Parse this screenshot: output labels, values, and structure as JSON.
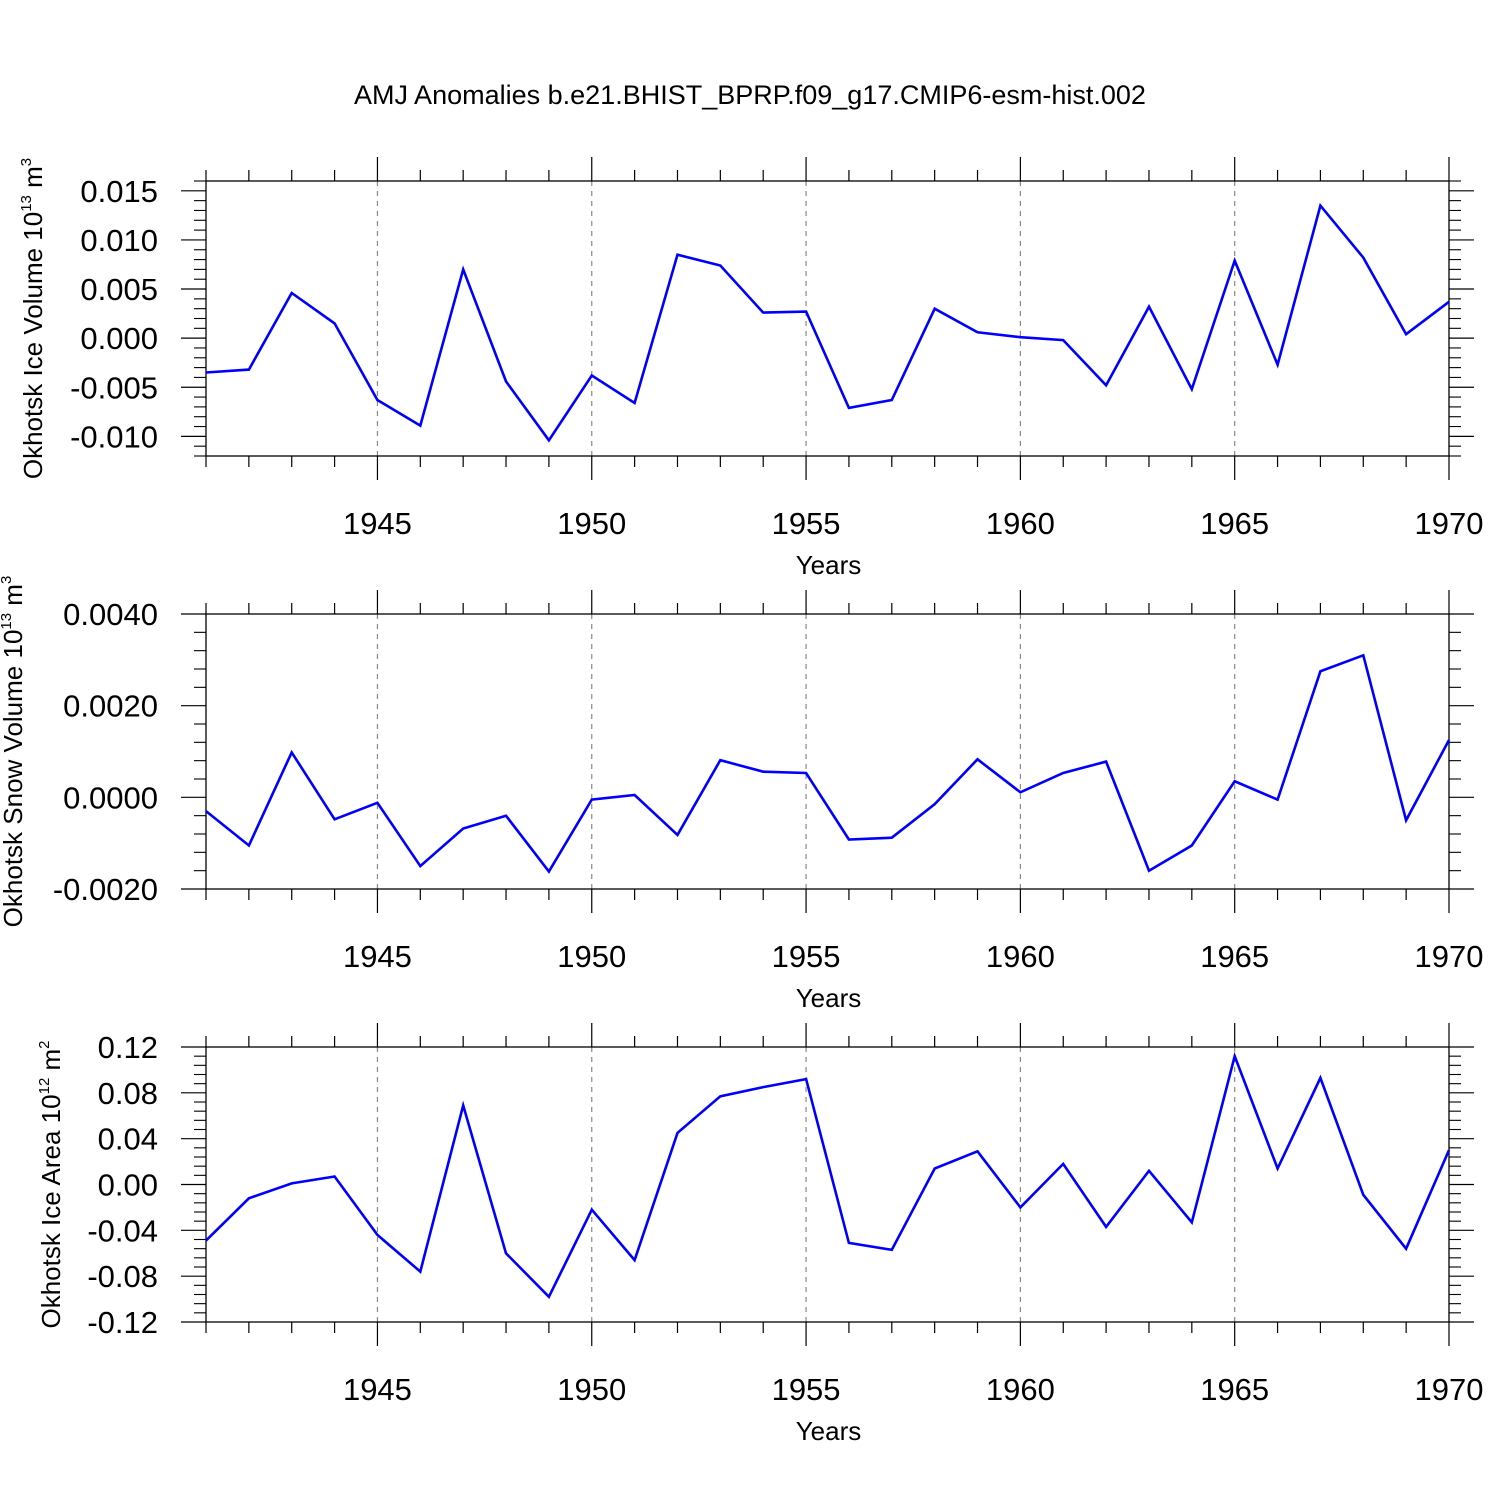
{
  "title": "AMJ Anomalies b.e21.BHIST_BPRP.f09_g17.CMIP6-esm-hist.002",
  "line_color": "#0000ff",
  "chart_data": [
    {
      "type": "line",
      "ylabel": {
        "base": "Okhotsk Ice Volume 10",
        "exp": "13",
        "unit": " m",
        "unit_exp": "3"
      },
      "xlabel": "Years",
      "xlim": [
        1941,
        1970
      ],
      "ylim": [
        -0.012,
        0.016
      ],
      "y_ticks": [
        -0.01,
        -0.005,
        0,
        0.005,
        0.01,
        0.015
      ],
      "y_tick_labels": [
        "-0.010",
        "-0.005",
        "0.000",
        "0.005",
        "0.010",
        "0.015"
      ],
      "x_ticks": [
        1945,
        1950,
        1955,
        1960,
        1965,
        1970
      ],
      "x_tick_labels": [
        "1945",
        "1950",
        "1955",
        "1960",
        "1965",
        "1970"
      ],
      "x": [
        1941,
        1942,
        1943,
        1944,
        1945,
        1946,
        1947,
        1948,
        1949,
        1950,
        1951,
        1952,
        1953,
        1954,
        1955,
        1956,
        1957,
        1958,
        1959,
        1960,
        1961,
        1962,
        1963,
        1964,
        1965,
        1966,
        1967,
        1968,
        1969,
        1970
      ],
      "series": [
        {
          "values": [
            -0.0035,
            -0.0032,
            0.0046,
            0.0015,
            -0.0063,
            -0.0089,
            0.007,
            -0.0044,
            -0.0104,
            -0.0038,
            -0.0066,
            0.0085,
            0.0074,
            0.0026,
            0.0027,
            -0.0071,
            -0.0063,
            0.003,
            0.0006,
            0.0001,
            -0.0002,
            -0.0048,
            0.0032,
            -0.0052,
            0.0079,
            -0.0027,
            0.0135,
            0.0082,
            0.0004,
            0.0037
          ]
        }
      ]
    },
    {
      "type": "line",
      "ylabel": {
        "base": "Okhotsk Snow Volume 10",
        "exp": "13",
        "unit": " m",
        "unit_exp": "3"
      },
      "xlabel": "Years",
      "xlim": [
        1941,
        1970
      ],
      "ylim": [
        -0.002,
        0.004
      ],
      "y_ticks": [
        -0.002,
        0,
        0.002,
        0.004
      ],
      "y_tick_labels": [
        "-0.0020",
        "0.0000",
        "0.0020",
        "0.0040"
      ],
      "x_ticks": [
        1945,
        1950,
        1955,
        1960,
        1965,
        1970
      ],
      "x_tick_labels": [
        "1945",
        "1950",
        "1955",
        "1960",
        "1965",
        "1970"
      ],
      "x": [
        1941,
        1942,
        1943,
        1944,
        1945,
        1946,
        1947,
        1948,
        1949,
        1950,
        1951,
        1952,
        1953,
        1954,
        1955,
        1956,
        1957,
        1958,
        1959,
        1960,
        1961,
        1962,
        1963,
        1964,
        1965,
        1966,
        1967,
        1968,
        1969,
        1970
      ],
      "series": [
        {
          "values": [
            -0.0003,
            -0.00105,
            0.00098,
            -0.00048,
            -0.00012,
            -0.0015,
            -0.00068,
            -0.0004,
            -0.00162,
            -5e-05,
            5e-05,
            -0.00082,
            0.00081,
            0.00056,
            0.00053,
            -0.00092,
            -0.00088,
            -0.00015,
            0.00083,
            0.00011,
            0.00053,
            0.00078,
            -0.0016,
            -0.00105,
            0.00035,
            -5e-05,
            0.00275,
            0.0031,
            -0.0005,
            0.00125
          ]
        }
      ]
    },
    {
      "type": "line",
      "ylabel": {
        "base": "Okhotsk Ice Area 10",
        "exp": "12",
        "unit": " m",
        "unit_exp": "2"
      },
      "xlabel": "Years",
      "xlim": [
        1941,
        1970
      ],
      "ylim": [
        -0.12,
        0.12
      ],
      "y_ticks": [
        -0.12,
        -0.08,
        -0.04,
        0,
        0.04,
        0.08,
        0.12
      ],
      "y_tick_labels": [
        "-0.12",
        "-0.08",
        "-0.04",
        "0.00",
        "0.04",
        "0.08",
        "0.12"
      ],
      "x_ticks": [
        1945,
        1950,
        1955,
        1960,
        1965,
        1970
      ],
      "x_tick_labels": [
        "1945",
        "1950",
        "1955",
        "1960",
        "1965",
        "1970"
      ],
      "x": [
        1941,
        1942,
        1943,
        1944,
        1945,
        1946,
        1947,
        1948,
        1949,
        1950,
        1951,
        1952,
        1953,
        1954,
        1955,
        1956,
        1957,
        1958,
        1959,
        1960,
        1961,
        1962,
        1963,
        1964,
        1965,
        1966,
        1967,
        1968,
        1969,
        1970
      ],
      "series": [
        {
          "values": [
            -0.049,
            -0.012,
            0.001,
            0.007,
            -0.044,
            -0.076,
            0.069,
            -0.06,
            -0.098,
            -0.022,
            -0.066,
            0.045,
            0.077,
            0.085,
            0.092,
            -0.051,
            -0.057,
            0.014,
            0.029,
            -0.02,
            0.018,
            -0.037,
            0.012,
            -0.033,
            0.112,
            0.014,
            0.093,
            -0.009,
            -0.056,
            0.03
          ]
        }
      ]
    }
  ]
}
